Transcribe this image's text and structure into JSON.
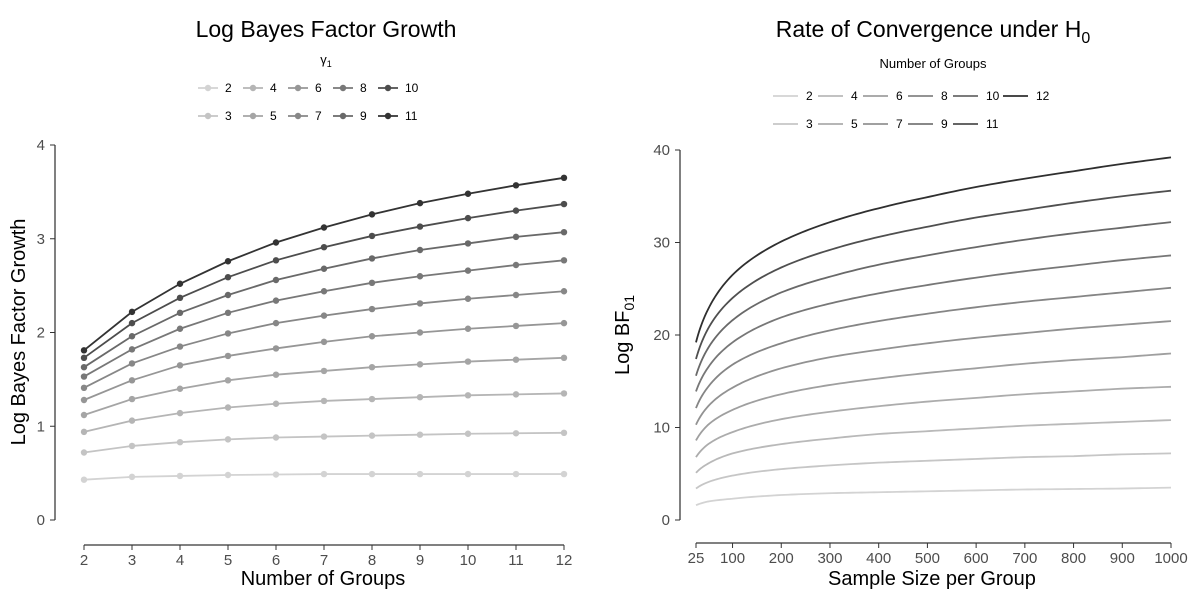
{
  "chart_data": [
    {
      "type": "line",
      "title": "Log Bayes Factor Growth",
      "xlabel": "Number of Groups",
      "ylabel": "Log Bayes Factor Growth",
      "xlim": [
        2,
        12
      ],
      "ylim": [
        0,
        4
      ],
      "xticks": [
        "2",
        "3",
        "4",
        "5",
        "6",
        "7",
        "8",
        "9",
        "10",
        "11",
        "12"
      ],
      "yticks": [
        "0",
        "1",
        "2",
        "3",
        "4"
      ],
      "legend": {
        "title": "γ",
        "title_sub": "1",
        "placement": "top",
        "entries": [
          "2",
          "4",
          "6",
          "8",
          "10",
          "3",
          "5",
          "7",
          "9",
          "11"
        ]
      },
      "grid": false,
      "markers": true,
      "x": [
        2,
        3,
        4,
        5,
        6,
        7,
        8,
        9,
        10,
        11,
        12
      ],
      "series": [
        {
          "name": "2",
          "color": "#d3d3d3",
          "values": [
            0.43,
            0.46,
            0.47,
            0.48,
            0.485,
            0.49,
            0.49,
            0.49,
            0.49,
            0.49,
            0.49
          ]
        },
        {
          "name": "3",
          "color": "#c4c4c4",
          "values": [
            0.72,
            0.79,
            0.83,
            0.86,
            0.88,
            0.89,
            0.9,
            0.91,
            0.92,
            0.925,
            0.93
          ]
        },
        {
          "name": "4",
          "color": "#b5b5b5",
          "values": [
            0.94,
            1.06,
            1.14,
            1.2,
            1.24,
            1.27,
            1.29,
            1.31,
            1.33,
            1.34,
            1.35
          ]
        },
        {
          "name": "5",
          "color": "#a5a5a5",
          "values": [
            1.12,
            1.29,
            1.4,
            1.49,
            1.55,
            1.59,
            1.63,
            1.66,
            1.69,
            1.71,
            1.73
          ]
        },
        {
          "name": "6",
          "color": "#969696",
          "values": [
            1.28,
            1.49,
            1.65,
            1.75,
            1.83,
            1.9,
            1.96,
            2.0,
            2.04,
            2.07,
            2.1
          ]
        },
        {
          "name": "7",
          "color": "#878787",
          "values": [
            1.41,
            1.67,
            1.85,
            1.99,
            2.1,
            2.18,
            2.25,
            2.31,
            2.36,
            2.4,
            2.44
          ]
        },
        {
          "name": "8",
          "color": "#787878",
          "values": [
            1.53,
            1.82,
            2.04,
            2.21,
            2.34,
            2.44,
            2.53,
            2.6,
            2.66,
            2.72,
            2.77
          ]
        },
        {
          "name": "9",
          "color": "#696969",
          "values": [
            1.63,
            1.96,
            2.21,
            2.4,
            2.56,
            2.68,
            2.79,
            2.88,
            2.95,
            3.02,
            3.07
          ]
        },
        {
          "name": "10",
          "color": "#4d4d4d",
          "values": [
            1.73,
            2.1,
            2.37,
            2.59,
            2.77,
            2.91,
            3.03,
            3.13,
            3.22,
            3.3,
            3.37
          ]
        },
        {
          "name": "11",
          "color": "#333333",
          "values": [
            1.81,
            2.22,
            2.52,
            2.76,
            2.96,
            3.12,
            3.26,
            3.38,
            3.48,
            3.57,
            3.65
          ]
        }
      ]
    },
    {
      "type": "line",
      "title": "Rate of Convergence under H",
      "title_sub": "0",
      "xlabel": "Sample Size per Group",
      "ylabel": "Log BF",
      "ylabel_sub": "01",
      "xlim": [
        25,
        1000
      ],
      "ylim": [
        0,
        40
      ],
      "xticks": [
        "25",
        "100",
        "200",
        "300",
        "400",
        "500",
        "600",
        "700",
        "800",
        "900",
        "1000"
      ],
      "xtick_values": [
        25,
        100,
        200,
        300,
        400,
        500,
        600,
        700,
        800,
        900,
        1000
      ],
      "yticks": [
        "0",
        "10",
        "20",
        "30",
        "40"
      ],
      "legend": {
        "title": "Number of Groups",
        "placement": "top",
        "entries": [
          "2",
          "4",
          "6",
          "8",
          "10",
          "12",
          "3",
          "5",
          "7",
          "9",
          "11"
        ]
      },
      "grid": false,
      "markers": false,
      "x": [
        25,
        50,
        100,
        200,
        300,
        400,
        500,
        600,
        700,
        800,
        900,
        1000
      ],
      "series": [
        {
          "name": "2",
          "color": "#d3d3d3",
          "values": [
            1.6,
            2.0,
            2.3,
            2.7,
            2.9,
            3.0,
            3.1,
            3.2,
            3.3,
            3.35,
            3.4,
            3.5
          ]
        },
        {
          "name": "3",
          "color": "#c6c6c6",
          "values": [
            3.4,
            4.1,
            4.8,
            5.5,
            5.9,
            6.2,
            6.4,
            6.6,
            6.8,
            6.9,
            7.1,
            7.2
          ]
        },
        {
          "name": "4",
          "color": "#b9b9b9",
          "values": [
            5.1,
            6.1,
            7.2,
            8.2,
            8.8,
            9.3,
            9.6,
            9.9,
            10.2,
            10.4,
            10.6,
            10.8
          ]
        },
        {
          "name": "5",
          "color": "#acacac",
          "values": [
            6.8,
            8.2,
            9.5,
            10.9,
            11.7,
            12.3,
            12.8,
            13.2,
            13.6,
            13.9,
            14.2,
            14.4
          ]
        },
        {
          "name": "6",
          "color": "#9f9f9f",
          "values": [
            8.6,
            10.3,
            11.9,
            13.6,
            14.6,
            15.3,
            15.9,
            16.4,
            16.9,
            17.3,
            17.6,
            18.0
          ]
        },
        {
          "name": "7",
          "color": "#929292",
          "values": [
            10.3,
            12.3,
            14.3,
            16.4,
            17.6,
            18.4,
            19.1,
            19.7,
            20.2,
            20.7,
            21.1,
            21.5
          ]
        },
        {
          "name": "8",
          "color": "#858585",
          "values": [
            12.1,
            14.4,
            16.8,
            19.1,
            20.5,
            21.5,
            22.3,
            23.0,
            23.6,
            24.1,
            24.6,
            25.1
          ]
        },
        {
          "name": "9",
          "color": "#777777",
          "values": [
            13.9,
            16.5,
            19.2,
            21.9,
            23.4,
            24.5,
            25.4,
            26.2,
            26.9,
            27.5,
            28.1,
            28.6
          ]
        },
        {
          "name": "10",
          "color": "#696969",
          "values": [
            15.6,
            18.6,
            21.6,
            24.6,
            26.3,
            27.6,
            28.6,
            29.5,
            30.3,
            31.0,
            31.6,
            32.2
          ]
        },
        {
          "name": "11",
          "color": "#4f4f4f",
          "values": [
            17.4,
            20.7,
            24.0,
            27.3,
            29.2,
            30.6,
            31.7,
            32.7,
            33.5,
            34.3,
            35.0,
            35.6
          ]
        },
        {
          "name": "12",
          "color": "#2f2f2f",
          "values": [
            19.2,
            22.8,
            26.5,
            30.1,
            32.2,
            33.7,
            34.9,
            36.0,
            36.9,
            37.7,
            38.5,
            39.2
          ]
        }
      ]
    }
  ]
}
